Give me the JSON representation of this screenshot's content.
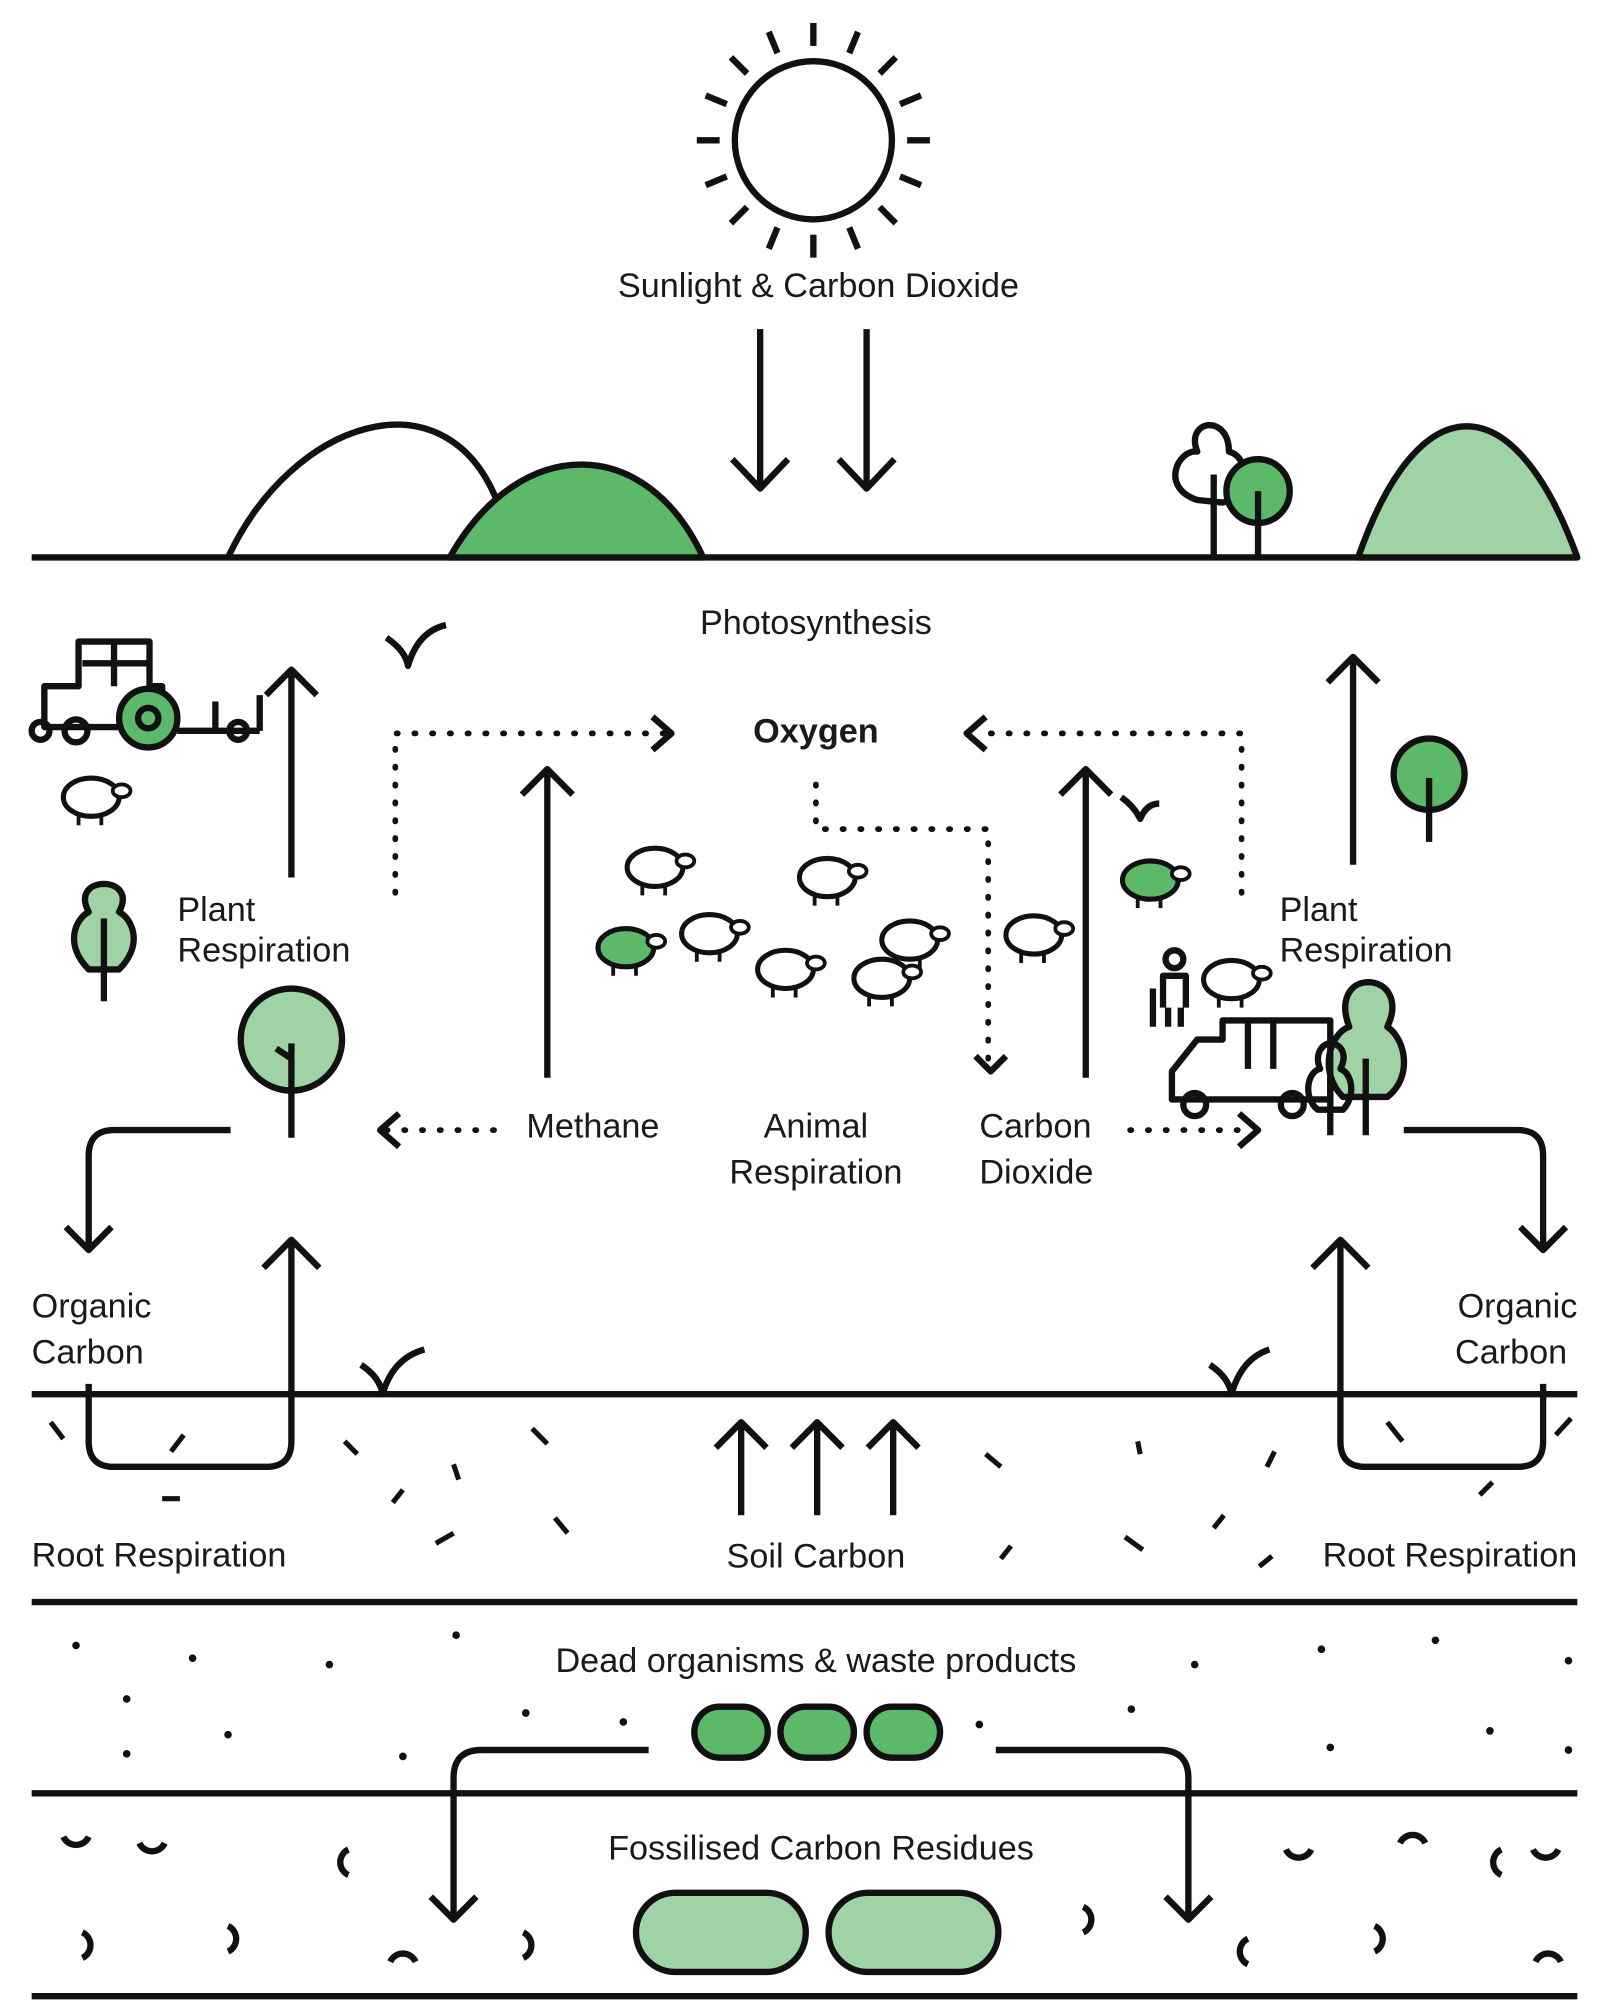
{
  "labels": {
    "sunlight": "Sunlight & Carbon Dioxide",
    "photosynthesis": "Photosynthesis",
    "oxygen": "Oxygen",
    "plant_respiration_left": [
      "Plant",
      "Respiration"
    ],
    "plant_respiration_right": [
      "Plant",
      "Respiration"
    ],
    "methane": "Methane",
    "animal_respiration": [
      "Animal",
      "Respiration"
    ],
    "carbon_dioxide": [
      "Carbon",
      "Dioxide"
    ],
    "organic_carbon_left": [
      "Organic",
      "Carbon"
    ],
    "organic_carbon_right": [
      "Organic",
      "Carbon"
    ],
    "root_respiration_left": "Root Respiration",
    "root_respiration_right": "Root Respiration",
    "soil_carbon": "Soil Carbon",
    "dead_organisms": "Dead organisms & waste products",
    "fossilised": "Fossilised Carbon Residues"
  }
}
